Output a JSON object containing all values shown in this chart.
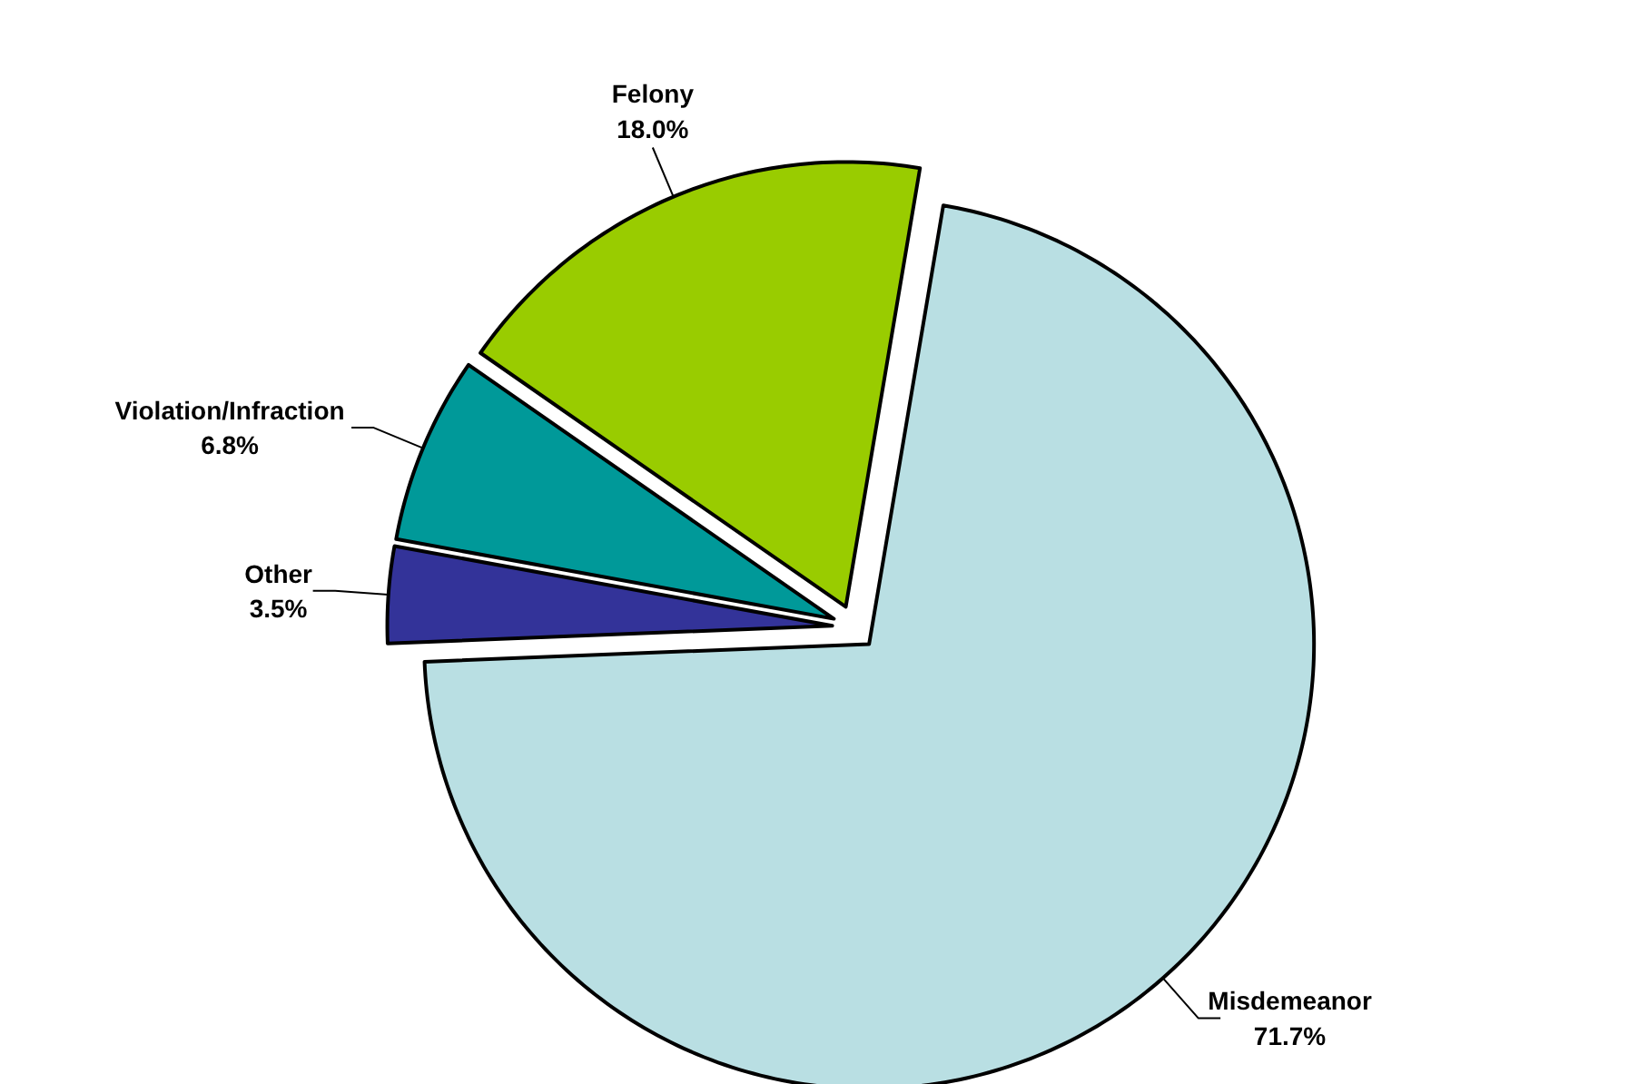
{
  "chart_data": {
    "type": "pie",
    "categories": [
      "Misdemeanor",
      "Other",
      "Violation/Infraction",
      "Felony"
    ],
    "values": [
      71.7,
      3.5,
      6.8,
      18.0
    ],
    "value_labels": [
      "71.7%",
      "3.5%",
      "6.8%",
      "18.0%"
    ],
    "colors": [
      "#b9dfe3",
      "#333399",
      "#009999",
      "#99cc00"
    ]
  }
}
